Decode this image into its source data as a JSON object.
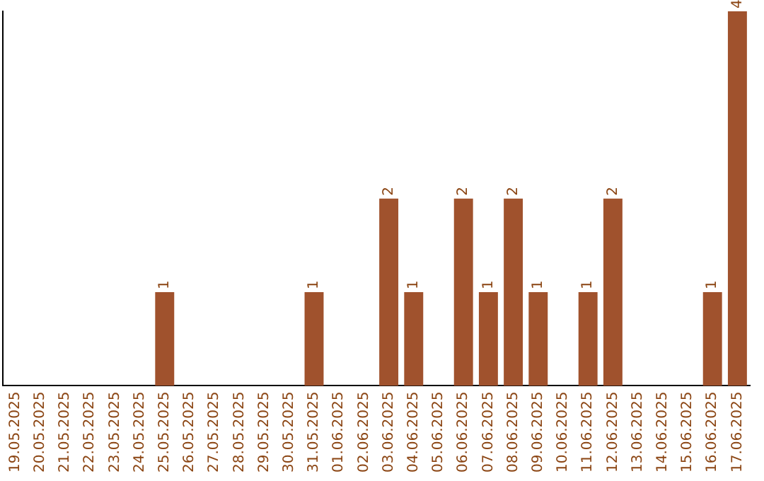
{
  "chart_data": {
    "type": "bar",
    "categories": [
      "19.05.2025",
      "20.05.2025",
      "21.05.2025",
      "22.05.2025",
      "23.05.2025",
      "24.05.2025",
      "25.05.2025",
      "26.05.2025",
      "27.05.2025",
      "28.05.2025",
      "29.05.2025",
      "30.05.2025",
      "31.05.2025",
      "01.06.2025",
      "02.06.2025",
      "03.06.2025",
      "04.06.2025",
      "05.06.2025",
      "06.06.2025",
      "07.06.2025",
      "08.06.2025",
      "09.06.2025",
      "10.06.2025",
      "11.06.2025",
      "12.06.2025",
      "13.06.2025",
      "14.06.2025",
      "15.06.2025",
      "16.06.2025",
      "17.06.2025"
    ],
    "values": [
      0,
      0,
      0,
      0,
      0,
      0,
      1,
      0,
      0,
      0,
      0,
      0,
      1,
      0,
      0,
      2,
      1,
      0,
      2,
      1,
      2,
      1,
      0,
      1,
      2,
      0,
      0,
      0,
      1,
      4
    ],
    "value_labels": [
      null,
      null,
      null,
      null,
      null,
      null,
      "1",
      null,
      null,
      null,
      null,
      null,
      "1",
      null,
      null,
      "2",
      "1",
      null,
      "2",
      "1",
      "2",
      "1",
      null,
      "1",
      "2",
      null,
      null,
      null,
      "1",
      "4"
    ],
    "color": "#a0522d",
    "ylim": [
      0,
      4
    ],
    "tick_labels": "x",
    "grid": false,
    "legend": false
  }
}
